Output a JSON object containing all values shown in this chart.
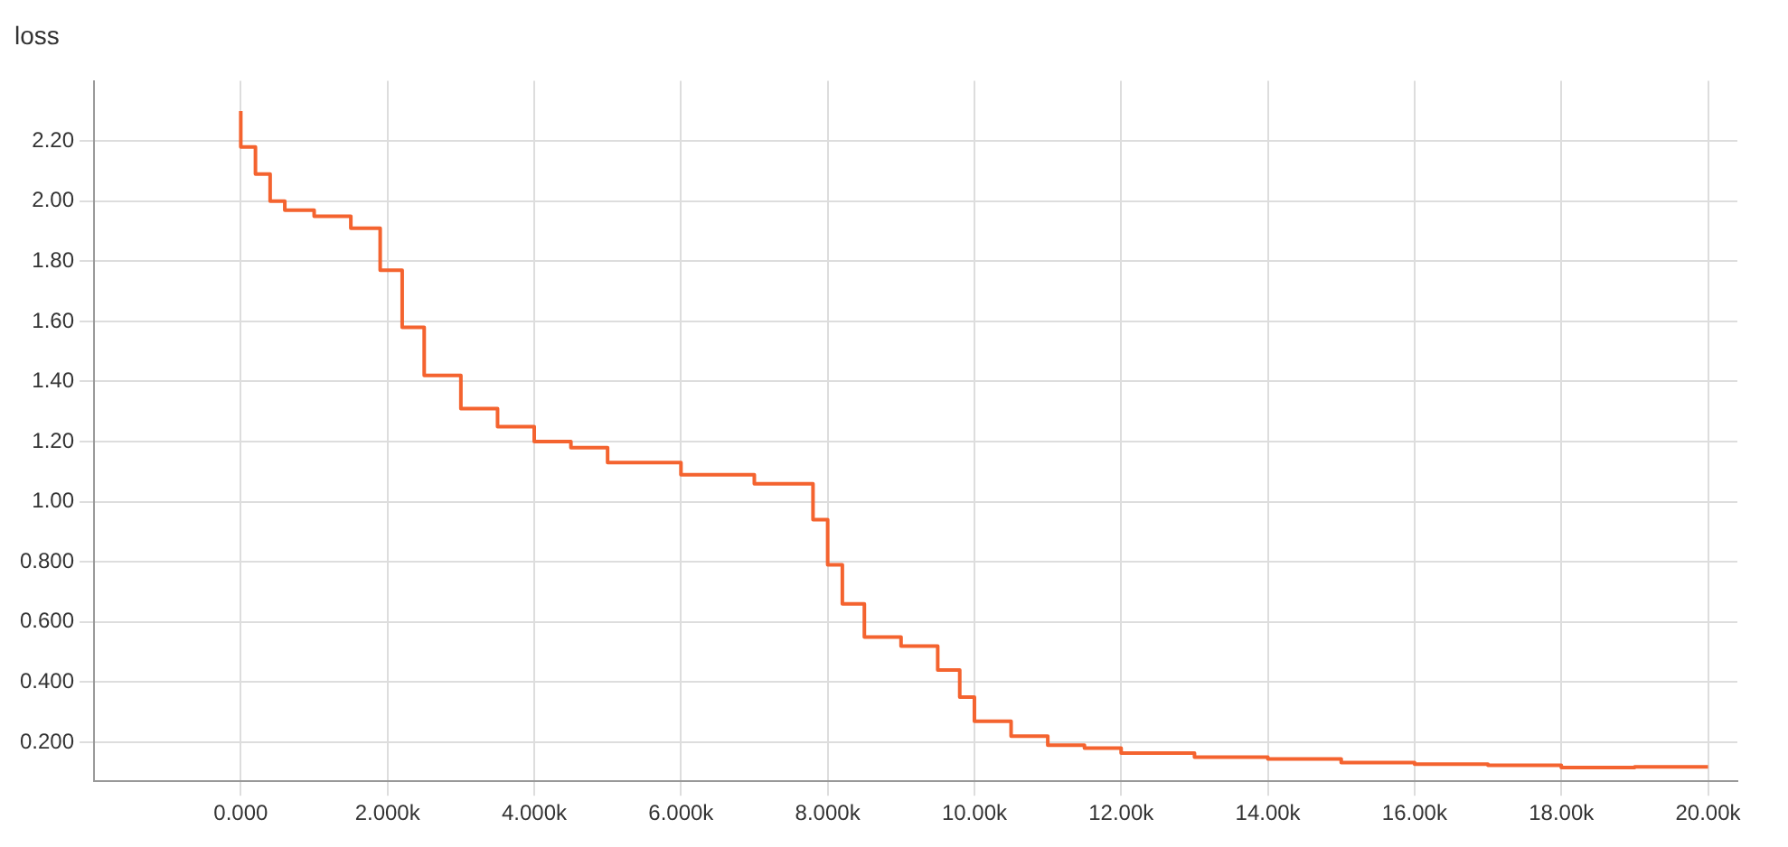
{
  "chart_data": {
    "type": "step",
    "title": "loss",
    "x": [
      0,
      200,
      400,
      600,
      1000,
      1500,
      1900,
      2200,
      2500,
      3000,
      3500,
      4000,
      4500,
      5000,
      6000,
      7000,
      7800,
      8000,
      8200,
      8500,
      9000,
      9500,
      9800,
      10000,
      10500,
      11000,
      11500,
      12000,
      13000,
      14000,
      15000,
      16000,
      17000,
      18000,
      19000,
      20000
    ],
    "series": [
      {
        "color": "#f4632f",
        "values": [
          2.3,
          2.18,
          2.09,
          2.0,
          1.97,
          1.95,
          1.91,
          1.77,
          1.58,
          1.42,
          1.31,
          1.25,
          1.2,
          1.18,
          1.13,
          1.09,
          1.06,
          0.94,
          0.79,
          0.66,
          0.55,
          0.52,
          0.44,
          0.35,
          0.27,
          0.22,
          0.19,
          0.18,
          0.164,
          0.15,
          0.144,
          0.132,
          0.127,
          0.123,
          0.116,
          0.118
        ]
      }
    ],
    "xlim": [
      -2000,
      20400
    ],
    "xticks": [
      {
        "value": 0,
        "label": "0.000"
      },
      {
        "value": 2000,
        "label": "2.000k"
      },
      {
        "value": 4000,
        "label": "4.000k"
      },
      {
        "value": 6000,
        "label": "6.000k"
      },
      {
        "value": 8000,
        "label": "8.000k"
      },
      {
        "value": 10000,
        "label": "10.00k"
      },
      {
        "value": 12000,
        "label": "12.00k"
      },
      {
        "value": 14000,
        "label": "14.00k"
      },
      {
        "value": 16000,
        "label": "16.00k"
      },
      {
        "value": 18000,
        "label": "18.00k"
      },
      {
        "value": 20000,
        "label": "20.00k"
      }
    ],
    "ylim": [
      0.07,
      2.4
    ],
    "yticks": [
      {
        "value": 0.2,
        "label": "0.200"
      },
      {
        "value": 0.4,
        "label": "0.400"
      },
      {
        "value": 0.6,
        "label": "0.600"
      },
      {
        "value": 0.8,
        "label": "0.800"
      },
      {
        "value": 1.0,
        "label": "1.00"
      },
      {
        "value": 1.2,
        "label": "1.20"
      },
      {
        "value": 1.4,
        "label": "1.40"
      },
      {
        "value": 1.6,
        "label": "1.60"
      },
      {
        "value": 1.8,
        "label": "1.80"
      },
      {
        "value": 2.0,
        "label": "2.00"
      },
      {
        "value": 2.2,
        "label": "2.20"
      }
    ],
    "grid": true,
    "line_style": "solid"
  }
}
